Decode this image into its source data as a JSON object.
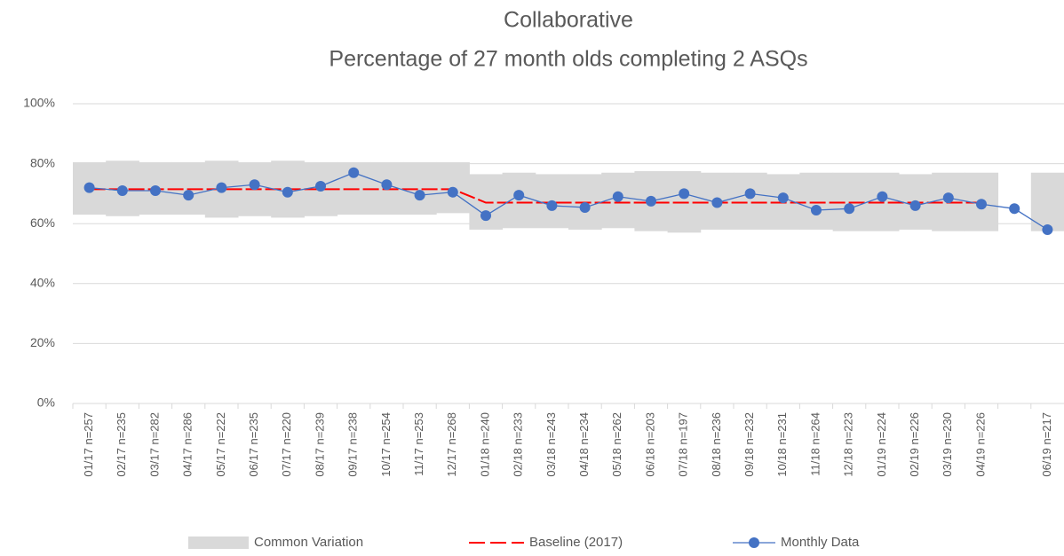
{
  "chart_data": {
    "type": "line",
    "title": "Collaborative",
    "subtitle": "Percentage of 27 month olds completing 2 ASQs",
    "categories": [
      "01/17 n=257",
      "02/17 n=235",
      "03/17 n=282",
      "04/17 n=286",
      "05/17 n=222",
      "06/17 n=235",
      "07/17 n=220",
      "08/17 n=239",
      "09/17 n=238",
      "10/17 n=254",
      "11/17 n=253",
      "12/17 n=268",
      "01/18 n=240",
      "02/18 n=233",
      "03/18 n=243",
      "04/18 n=234",
      "05/18 n=262",
      "06/18 n=203",
      "07/18 n=197",
      "08/18 n=236",
      "09/18 n=232",
      "10/18 n=231",
      "11/18 n=264",
      "12/18 n=223",
      "01/19 n=224",
      "02/19 n=226",
      "03/19 n=230",
      "04/19 n=226",
      null,
      "06/19 n=217"
    ],
    "series": [
      {
        "name": "Common Variation",
        "color": "#d9d9d9",
        "values": [
          80.5,
          81,
          80.5,
          80.5,
          81,
          80.5,
          81,
          80.5,
          80.5,
          80.5,
          80.5,
          80.5,
          76.5,
          77,
          76.5,
          76.5,
          77,
          77.5,
          77.5,
          77,
          77,
          76.5,
          77,
          77,
          77,
          76.5,
          77,
          77,
          null,
          77
        ],
        "lower": [
          63,
          62.5,
          63,
          63,
          62,
          62.5,
          62,
          62.5,
          63,
          63,
          63,
          63.5,
          58,
          58.5,
          58.5,
          58,
          58.5,
          57.5,
          57,
          58,
          58,
          58,
          58,
          57.5,
          57.5,
          58,
          57.5,
          57.5,
          null,
          57.5
        ]
      },
      {
        "name": "Baseline (2017)",
        "color": "#ff0000",
        "values": [
          71.5,
          71.5,
          71.5,
          71.5,
          71.5,
          71.5,
          71.5,
          71.5,
          71.5,
          71.5,
          71.5,
          71.5,
          67,
          67,
          67,
          67,
          67,
          67,
          67,
          67,
          67,
          67,
          67,
          67,
          67,
          67,
          67,
          67,
          null,
          null
        ]
      },
      {
        "name": "Monthly Data",
        "color": "#4472c4",
        "values": [
          72,
          71,
          71,
          69.5,
          72,
          73,
          70.5,
          72.5,
          77,
          73,
          69.5,
          70.5,
          62.7,
          69.5,
          66,
          65.4,
          69,
          67.5,
          70,
          67,
          70,
          68.6,
          64.5,
          65,
          69,
          66,
          68.6,
          66.5,
          65,
          58
        ]
      }
    ],
    "ylim": [
      0,
      100
    ],
    "yticks": [
      {
        "value": 0,
        "label": "0%"
      },
      {
        "value": 20,
        "label": "20%"
      },
      {
        "value": 40,
        "label": "40%"
      },
      {
        "value": 60,
        "label": "60%"
      },
      {
        "value": 80,
        "label": "80%"
      },
      {
        "value": 100,
        "label": "100%"
      }
    ],
    "grid": true,
    "legend": "bottom"
  }
}
